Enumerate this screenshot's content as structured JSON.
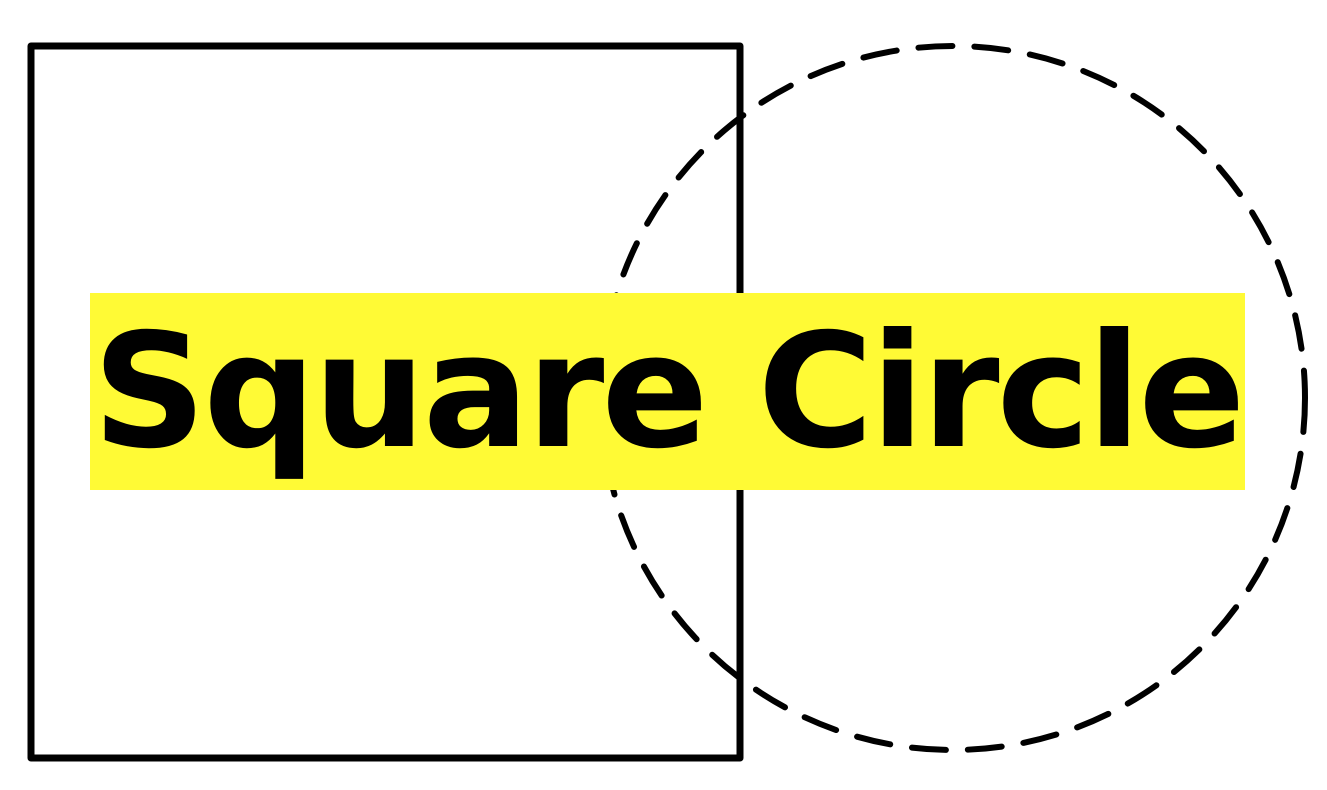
{
  "logo": {
    "wordmark": "Square Circle",
    "colors": {
      "highlight": "#fffa35",
      "stroke": "#000000",
      "background": "#ffffff"
    },
    "shapes": {
      "square": "solid-outline",
      "circle": "dashed-outline"
    }
  }
}
